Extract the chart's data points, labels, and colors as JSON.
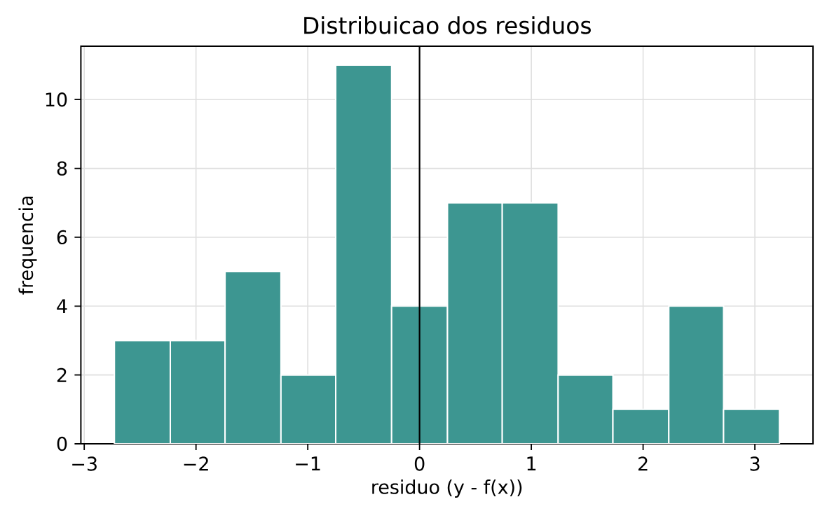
{
  "chart_data": {
    "type": "histogram",
    "title": "Distribuicao dos residuos",
    "xlabel": "residuo (y - f(x))",
    "ylabel": "frequencia",
    "bins": [
      -2.73,
      -2.23,
      -1.74,
      -1.24,
      -0.75,
      -0.25,
      0.25,
      0.74,
      1.24,
      1.73,
      2.23,
      2.72,
      3.22
    ],
    "values": [
      3,
      3,
      5,
      2,
      11,
      4,
      7,
      7,
      2,
      1,
      4,
      1
    ],
    "color": "#3d9691",
    "xlim": [
      -3.03,
      3.52
    ],
    "ylim": [
      0,
      11.55
    ],
    "xticks": [
      {
        "value": -3,
        "label": "−3"
      },
      {
        "value": -2,
        "label": "−2"
      },
      {
        "value": -1,
        "label": "−1"
      },
      0,
      1,
      2,
      3
    ],
    "yticks": [
      0,
      2,
      4,
      6,
      8,
      10
    ],
    "ref_lines": [
      {
        "axis": "x",
        "value": 0,
        "color": "#000000"
      }
    ],
    "grid": true
  }
}
